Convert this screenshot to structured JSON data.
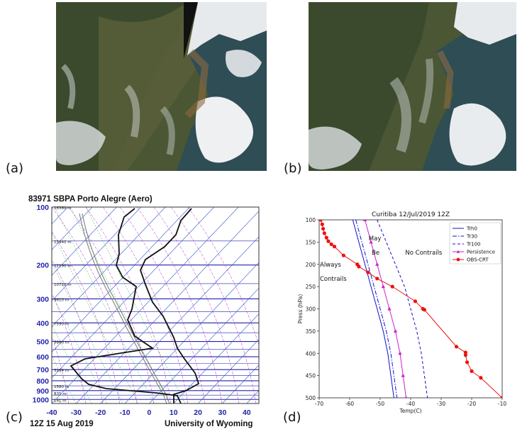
{
  "panels": {
    "a": {
      "label": "(a)"
    },
    "b": {
      "label": "(b)"
    },
    "c": {
      "label": "(c)"
    },
    "d": {
      "label": "(d)"
    }
  },
  "colors": {
    "land_dark": "#3e4a2e",
    "land_mid": "#56603c",
    "land_brown": "#7a6a46",
    "sea": "#2c4a52",
    "cloud": "#eef0f2",
    "skewt_isobar": "#2222aa",
    "skewt_isotherm": "#3355cc",
    "skewt_dryad": "#22aa22",
    "skewt_moistad": "#aa22cc",
    "skewt_label": "#2222aa"
  },
  "skewt": {
    "title": "83971 SBPA Porto Alegre (Aero)",
    "footer_left": "12Z 15 Aug 2019",
    "footer_right": "University of Wyoming",
    "pressure_labels": [
      "100",
      "200",
      "300",
      "400",
      "500",
      "600",
      "700",
      "800",
      "900",
      "1000"
    ],
    "temp_labels": [
      "-40",
      "-30",
      "-20",
      "-10",
      "0",
      "10",
      "20",
      "30",
      "40"
    ],
    "height_labels": [
      "16360 m",
      "13940 m",
      "12190 m",
      "10720 m",
      "9610 m",
      "7590 m",
      "5860 m",
      "3194 m",
      "1580 m",
      "835 m",
      "141 m"
    ]
  },
  "chart_data": {
    "type": "line",
    "title": "Curitiba 12/Jul/2019 12Z",
    "xlabel": "Temp(C)",
    "ylabel": "Press (hPa)",
    "xlim": [
      -70,
      -10
    ],
    "ylim": [
      500,
      100
    ],
    "x_ticks": [
      "-70",
      "-60",
      "-50",
      "-40",
      "-30",
      "-20",
      "-10"
    ],
    "y_ticks": [
      "100",
      "150",
      "200",
      "250",
      "300",
      "350",
      "400",
      "450",
      "500"
    ],
    "legend_position": "top-right",
    "annotations": [
      {
        "text": "Always",
        "x": -70,
        "y": 205
      },
      {
        "text": "Contrails",
        "x": -70,
        "y": 237
      },
      {
        "text": "May",
        "x": -54,
        "y": 146
      },
      {
        "text": "Be",
        "x": -53,
        "y": 178
      },
      {
        "text": "No Contrails",
        "x": -42,
        "y": 178
      }
    ],
    "series": [
      {
        "name": "Trh0",
        "style": "solid",
        "color": "#1111cc",
        "points": [
          [
            -59,
            100
          ],
          [
            -57,
            150
          ],
          [
            -55,
            200
          ],
          [
            -53,
            250
          ],
          [
            -51,
            300
          ],
          [
            -49,
            350
          ],
          [
            -47.5,
            400
          ],
          [
            -46.5,
            450
          ],
          [
            -45.5,
            500
          ]
        ]
      },
      {
        "name": "Tr30",
        "style": "dashdot",
        "color": "#1111cc",
        "points": [
          [
            -58,
            100
          ],
          [
            -56,
            150
          ],
          [
            -54,
            200
          ],
          [
            -52,
            250
          ],
          [
            -50,
            300
          ],
          [
            -48,
            350
          ],
          [
            -46.5,
            400
          ],
          [
            -45.5,
            450
          ],
          [
            -44.5,
            500
          ]
        ]
      },
      {
        "name": "Tr100",
        "style": "dashed",
        "color": "#1111cc",
        "points": [
          [
            -51,
            100
          ],
          [
            -48,
            150
          ],
          [
            -45,
            200
          ],
          [
            -42,
            250
          ],
          [
            -40,
            300
          ],
          [
            -38,
            350
          ],
          [
            -36.5,
            400
          ],
          [
            -35.5,
            450
          ],
          [
            -34.5,
            500
          ]
        ]
      },
      {
        "name": "Persistence",
        "style": "solid-markers",
        "color": "#cc22cc",
        "points": [
          [
            -55,
            100
          ],
          [
            -53,
            150
          ],
          [
            -51,
            200
          ],
          [
            -49,
            250
          ],
          [
            -47,
            300
          ],
          [
            -45,
            350
          ],
          [
            -43.5,
            400
          ],
          [
            -42.5,
            450
          ],
          [
            -41.5,
            500
          ]
        ]
      },
      {
        "name": "OBS-CRT",
        "style": "solid-markers",
        "color": "#ee1111",
        "points": [
          [
            -69.5,
            100
          ],
          [
            -69,
            110
          ],
          [
            -68.7,
            120
          ],
          [
            -68.3,
            130
          ],
          [
            -67.6,
            140
          ],
          [
            -67,
            148
          ],
          [
            -66,
            155
          ],
          [
            -65,
            160
          ],
          [
            -62,
            180
          ],
          [
            -57.5,
            200
          ],
          [
            -57,
            205
          ],
          [
            -54,
            218
          ],
          [
            -51,
            232
          ],
          [
            -46,
            250
          ],
          [
            -38.5,
            283
          ],
          [
            -36,
            300
          ],
          [
            -35.5,
            302
          ],
          [
            -25,
            385
          ],
          [
            -22,
            398
          ],
          [
            -22,
            404
          ],
          [
            -21.5,
            420
          ],
          [
            -20,
            440
          ],
          [
            -17,
            455
          ],
          [
            -10,
            500
          ]
        ]
      }
    ]
  }
}
